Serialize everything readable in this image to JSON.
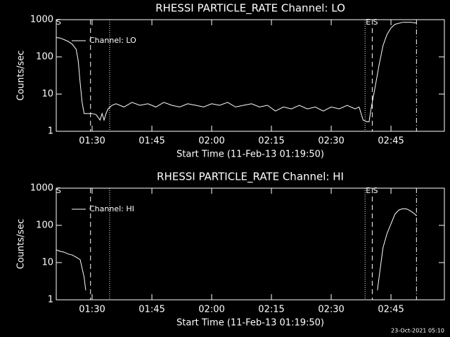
{
  "chart_data": [
    {
      "type": "line",
      "title": "RHESSI PARTICLE_RATE Channel: LO",
      "xlabel": "Start Time (11-Feb-13 01:19:50)",
      "ylabel": "Counts/sec",
      "x": [
        81,
        82,
        83,
        84,
        85,
        86,
        86.5,
        87,
        87.5,
        88,
        89,
        90,
        91,
        92,
        92.5,
        93,
        93.5,
        94,
        95,
        96,
        98,
        100,
        102,
        104,
        106,
        108,
        110,
        112,
        114,
        116,
        118,
        120,
        122,
        124,
        126,
        128,
        130,
        132,
        134,
        136,
        138,
        140,
        142,
        144,
        146,
        148,
        150,
        152,
        154,
        156,
        157,
        158,
        159,
        159.5,
        160,
        161,
        162,
        163,
        164,
        165,
        166,
        168,
        170,
        171,
        171.4
      ],
      "series": [
        {
          "name": "Channel: LO",
          "color": "#ffffff",
          "values": [
            330,
            320,
            290,
            260,
            220,
            160,
            80,
            20,
            6,
            3,
            3,
            3,
            2.8,
            2,
            3,
            2,
            3,
            4,
            5,
            5.5,
            4.5,
            6,
            5,
            5.5,
            4.5,
            6,
            5,
            4.5,
            5.5,
            5,
            4.5,
            5.5,
            5,
            6,
            4.5,
            5,
            5.5,
            4.5,
            5,
            3.5,
            4.5,
            4,
            5,
            4,
            4.5,
            3.5,
            4.5,
            4,
            5,
            4,
            4.5,
            2,
            1.8,
            1.8,
            4,
            15,
            60,
            200,
            400,
            600,
            750,
            850,
            850,
            820,
            820
          ]
        }
      ],
      "xlim": [
        81,
        178.4
      ],
      "xticks": [
        {
          "value": 90,
          "label": "01:30"
        },
        {
          "value": 105,
          "label": "01:45"
        },
        {
          "value": 120,
          "label": "02:00"
        },
        {
          "value": 135,
          "label": "02:15"
        },
        {
          "value": 150,
          "label": "02:30"
        },
        {
          "value": 165,
          "label": "02:45"
        }
      ],
      "ylim": [
        1,
        1000
      ],
      "yticks": [
        1,
        10,
        100,
        1000
      ],
      "yscale": "log",
      "legend": "upper left",
      "markers": [
        {
          "x": 89.6,
          "style": "dashed"
        },
        {
          "x": 94.4,
          "style": "dotted"
        },
        {
          "x": 158.5,
          "style": "dotted"
        },
        {
          "x": 160.3,
          "style": "dashed"
        },
        {
          "x": 171.4,
          "style": "dashdot"
        }
      ],
      "annotations": [
        {
          "text": "S",
          "x": 81.6
        },
        {
          "text": "E",
          "x": 159.3
        },
        {
          "text": "S",
          "x": 161.1
        }
      ]
    },
    {
      "type": "line",
      "title": "RHESSI PARTICLE_RATE Channel: HI",
      "xlabel": "Start Time (11-Feb-13 01:19:50)",
      "ylabel": "Counts/sec",
      "x": [
        81,
        82,
        83,
        84,
        85,
        86,
        87,
        87.5,
        88,
        88.4,
        125,
        161.6,
        162,
        162.5,
        163,
        164,
        165,
        166,
        167,
        168,
        169,
        170,
        171,
        171.4
      ],
      "series": [
        {
          "name": "Channel: HI",
          "color": "#ffffff",
          "values": [
            22,
            20,
            19,
            17,
            16,
            14,
            12,
            7,
            4,
            1.8,
            null,
            1.8,
            4,
            10,
            25,
            60,
            110,
            200,
            260,
            280,
            275,
            240,
            200,
            180
          ]
        }
      ],
      "xlim": [
        81,
        178.4
      ],
      "xticks": [
        {
          "value": 90,
          "label": "01:30"
        },
        {
          "value": 105,
          "label": "01:45"
        },
        {
          "value": 120,
          "label": "02:00"
        },
        {
          "value": 135,
          "label": "02:15"
        },
        {
          "value": 150,
          "label": "02:30"
        },
        {
          "value": 165,
          "label": "02:45"
        }
      ],
      "ylim": [
        1,
        1000
      ],
      "yticks": [
        1,
        10,
        100,
        1000
      ],
      "yscale": "log",
      "legend": "upper left",
      "markers": [
        {
          "x": 89.6,
          "style": "dashed"
        },
        {
          "x": 94.4,
          "style": "dotted"
        },
        {
          "x": 158.5,
          "style": "dotted"
        },
        {
          "x": 160.3,
          "style": "dashed"
        },
        {
          "x": 171.4,
          "style": "dashdot"
        }
      ],
      "annotations": [
        {
          "text": "S",
          "x": 81.6
        },
        {
          "text": "E",
          "x": 159.3
        },
        {
          "text": "S",
          "x": 161.1
        }
      ]
    }
  ],
  "timestamp": "23-Oct-2021 05:10"
}
